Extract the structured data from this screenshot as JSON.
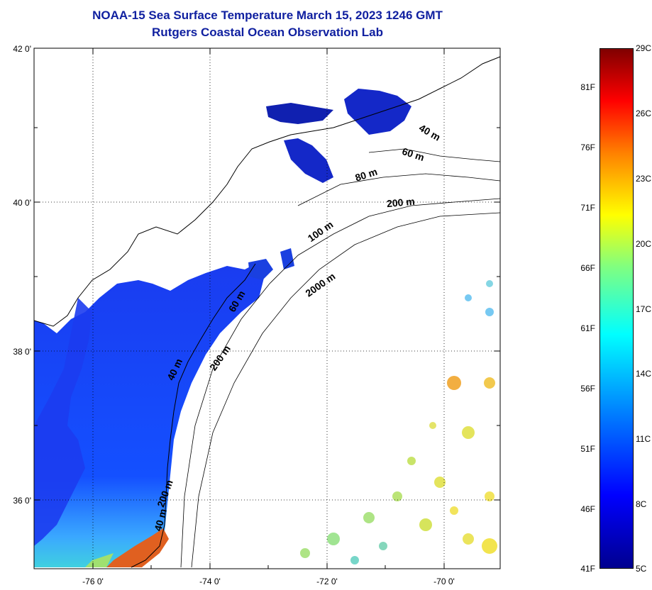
{
  "title": {
    "line1": "NOAA-15 Sea Surface Temperature March 15, 2023 1246 GMT",
    "line2": "Rutgers Coastal Ocean Observation Lab"
  },
  "map": {
    "lat_labels": [
      {
        "label": "42 0'",
        "lat": 42
      },
      {
        "label": "40 0'",
        "lat": 40
      },
      {
        "label": "38 0'",
        "lat": 38
      },
      {
        "label": "36 0'",
        "lat": 36
      }
    ],
    "lon_labels": [
      {
        "label": "-76 0'",
        "lon": -76
      },
      {
        "label": "-74 0'",
        "lon": -74
      },
      {
        "label": "-72 0'",
        "lon": -72
      },
      {
        "label": "-70 0'",
        "lon": -70
      }
    ],
    "lat_range": [
      35,
      42
    ],
    "lon_range": [
      -77,
      -69
    ],
    "contour_labels": [
      "40 m",
      "60 m",
      "80 m",
      "200 m",
      "100 m",
      "2000 m",
      "40 m",
      "200 m",
      "40 m",
      "60 m",
      "200 m"
    ],
    "grid": "dotted"
  },
  "colorbar": {
    "fahrenheit": [
      "81F",
      "76F",
      "71F",
      "66F",
      "61F",
      "56F",
      "51F",
      "46F",
      "41F"
    ],
    "celsius": [
      "29C",
      "26C",
      "23C",
      "20C",
      "17C",
      "14C",
      "11C",
      "8C",
      "5C"
    ],
    "min_c": 5,
    "max_c": 29
  }
}
